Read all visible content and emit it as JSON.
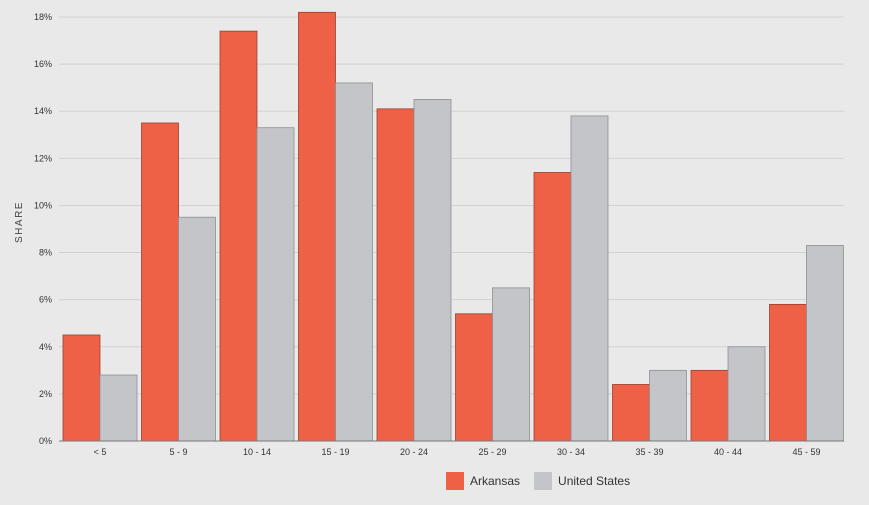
{
  "chart_data": {
    "type": "bar",
    "ylabel": "SHARE",
    "xlabel": "",
    "title": "",
    "ylim": [
      0,
      18
    ],
    "yticks": [
      0,
      2,
      4,
      6,
      8,
      10,
      12,
      14,
      16,
      18
    ],
    "ytick_labels": [
      "0%",
      "2%",
      "4%",
      "6%",
      "8%",
      "10%",
      "12%",
      "14%",
      "16%",
      "18%"
    ],
    "grid": true,
    "legend_position": "bottom",
    "categories": [
      "< 5",
      "5 - 9",
      "10 - 14",
      "15 - 19",
      "20 - 24",
      "25 - 29",
      "30 - 34",
      "35 - 39",
      "40 - 44",
      "45 - 59"
    ],
    "series": [
      {
        "name": "Arkansas",
        "color": "#ef6146",
        "values": [
          4.5,
          13.5,
          17.4,
          18.2,
          14.1,
          5.4,
          11.4,
          2.4,
          3.0,
          5.8
        ]
      },
      {
        "name": "United States",
        "color": "#c4c5c9",
        "values": [
          2.8,
          9.5,
          13.3,
          15.2,
          14.5,
          6.5,
          13.8,
          3.0,
          4.0,
          8.3
        ]
      }
    ]
  }
}
